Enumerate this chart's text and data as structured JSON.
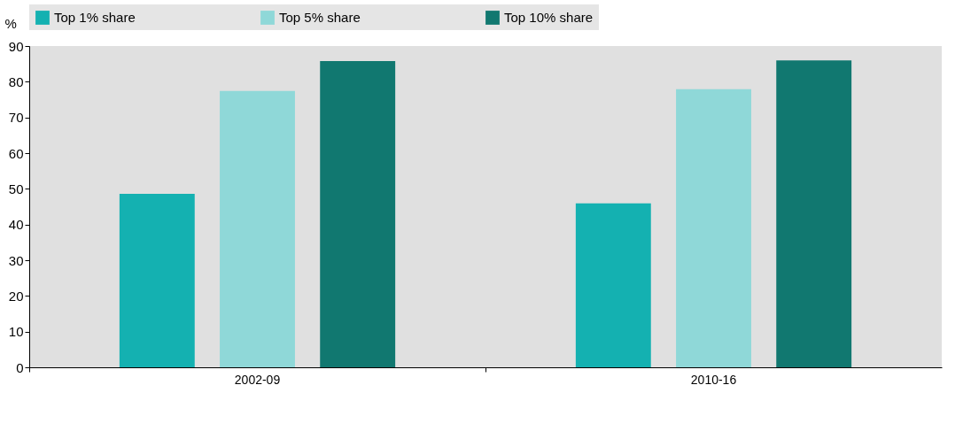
{
  "chart_data": {
    "type": "bar",
    "ylabel": "%",
    "categories": [
      "2002-09",
      "2010-16"
    ],
    "series": [
      {
        "name": "Top 1% share",
        "color": "#14b1b1",
        "values": [
          48.6,
          45.9
        ]
      },
      {
        "name": "Top 5% share",
        "color": "#8fd8d8",
        "values": [
          77.4,
          77.9
        ]
      },
      {
        "name": "Top 10% share",
        "color": "#117870",
        "values": [
          85.8,
          86.0
        ]
      }
    ],
    "ylim": [
      0,
      90
    ],
    "yticks": [
      0,
      10,
      20,
      30,
      40,
      50,
      60,
      70,
      80,
      90
    ],
    "grid": false,
    "legend": "top"
  }
}
